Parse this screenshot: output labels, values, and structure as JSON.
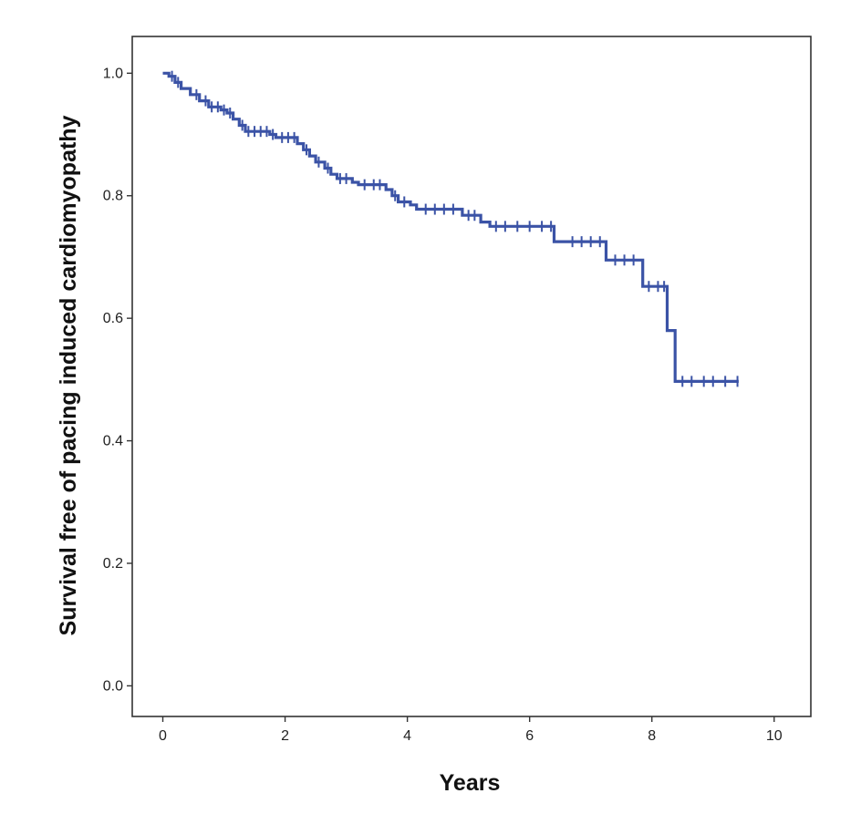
{
  "chart_data": {
    "type": "line",
    "subtype": "kaplan-meier step",
    "title": "",
    "xlabel": "Years",
    "ylabel": "Survival free of pacing induced cardiomyopathy",
    "xlim": [
      -0.5,
      10.6
    ],
    "ylim": [
      -0.05,
      1.06
    ],
    "xticks": [
      0,
      2,
      4,
      6,
      8,
      10
    ],
    "xtick_labels": [
      "0",
      "2",
      "4",
      "6",
      "8",
      "10"
    ],
    "yticks": [
      0.0,
      0.2,
      0.4,
      0.6,
      0.8,
      1.0
    ],
    "ytick_labels": [
      "0.0",
      "0.2",
      "0.4",
      "0.6",
      "0.8",
      "1.0"
    ],
    "grid": false,
    "legend": false,
    "line_color": "#3b53a6",
    "series": [
      {
        "steps": [
          [
            0.0,
            1.0
          ],
          [
            0.1,
            0.995
          ],
          [
            0.2,
            0.985
          ],
          [
            0.3,
            0.975
          ],
          [
            0.45,
            0.965
          ],
          [
            0.6,
            0.955
          ],
          [
            0.75,
            0.945
          ],
          [
            0.95,
            0.94
          ],
          [
            1.05,
            0.935
          ],
          [
            1.15,
            0.925
          ],
          [
            1.25,
            0.915
          ],
          [
            1.35,
            0.905
          ],
          [
            1.75,
            0.9
          ],
          [
            1.85,
            0.895
          ],
          [
            2.2,
            0.885
          ],
          [
            2.3,
            0.875
          ],
          [
            2.4,
            0.865
          ],
          [
            2.5,
            0.855
          ],
          [
            2.65,
            0.845
          ],
          [
            2.75,
            0.835
          ],
          [
            2.85,
            0.828
          ],
          [
            3.1,
            0.822
          ],
          [
            3.2,
            0.818
          ],
          [
            3.65,
            0.81
          ],
          [
            3.75,
            0.8
          ],
          [
            3.85,
            0.79
          ],
          [
            4.05,
            0.785
          ],
          [
            4.15,
            0.778
          ],
          [
            4.9,
            0.768
          ],
          [
            5.2,
            0.757
          ],
          [
            5.35,
            0.75
          ],
          [
            6.4,
            0.725
          ],
          [
            7.25,
            0.695
          ],
          [
            7.85,
            0.652
          ],
          [
            8.25,
            0.58
          ],
          [
            8.38,
            0.497
          ]
        ],
        "end_x": 9.42,
        "censored_x": [
          0.15,
          0.25,
          0.55,
          0.7,
          0.8,
          0.9,
          1.0,
          1.1,
          1.3,
          1.4,
          1.5,
          1.6,
          1.7,
          1.8,
          1.95,
          2.05,
          2.15,
          2.35,
          2.55,
          2.7,
          2.9,
          3.0,
          3.3,
          3.45,
          3.55,
          3.8,
          3.95,
          4.3,
          4.45,
          4.6,
          4.75,
          5.0,
          5.1,
          5.45,
          5.6,
          5.8,
          6.0,
          6.2,
          6.35,
          6.7,
          6.85,
          7.0,
          7.15,
          7.4,
          7.55,
          7.7,
          7.95,
          8.1,
          8.2,
          8.5,
          8.65,
          8.85,
          9.0,
          9.2,
          9.4
        ]
      }
    ]
  }
}
